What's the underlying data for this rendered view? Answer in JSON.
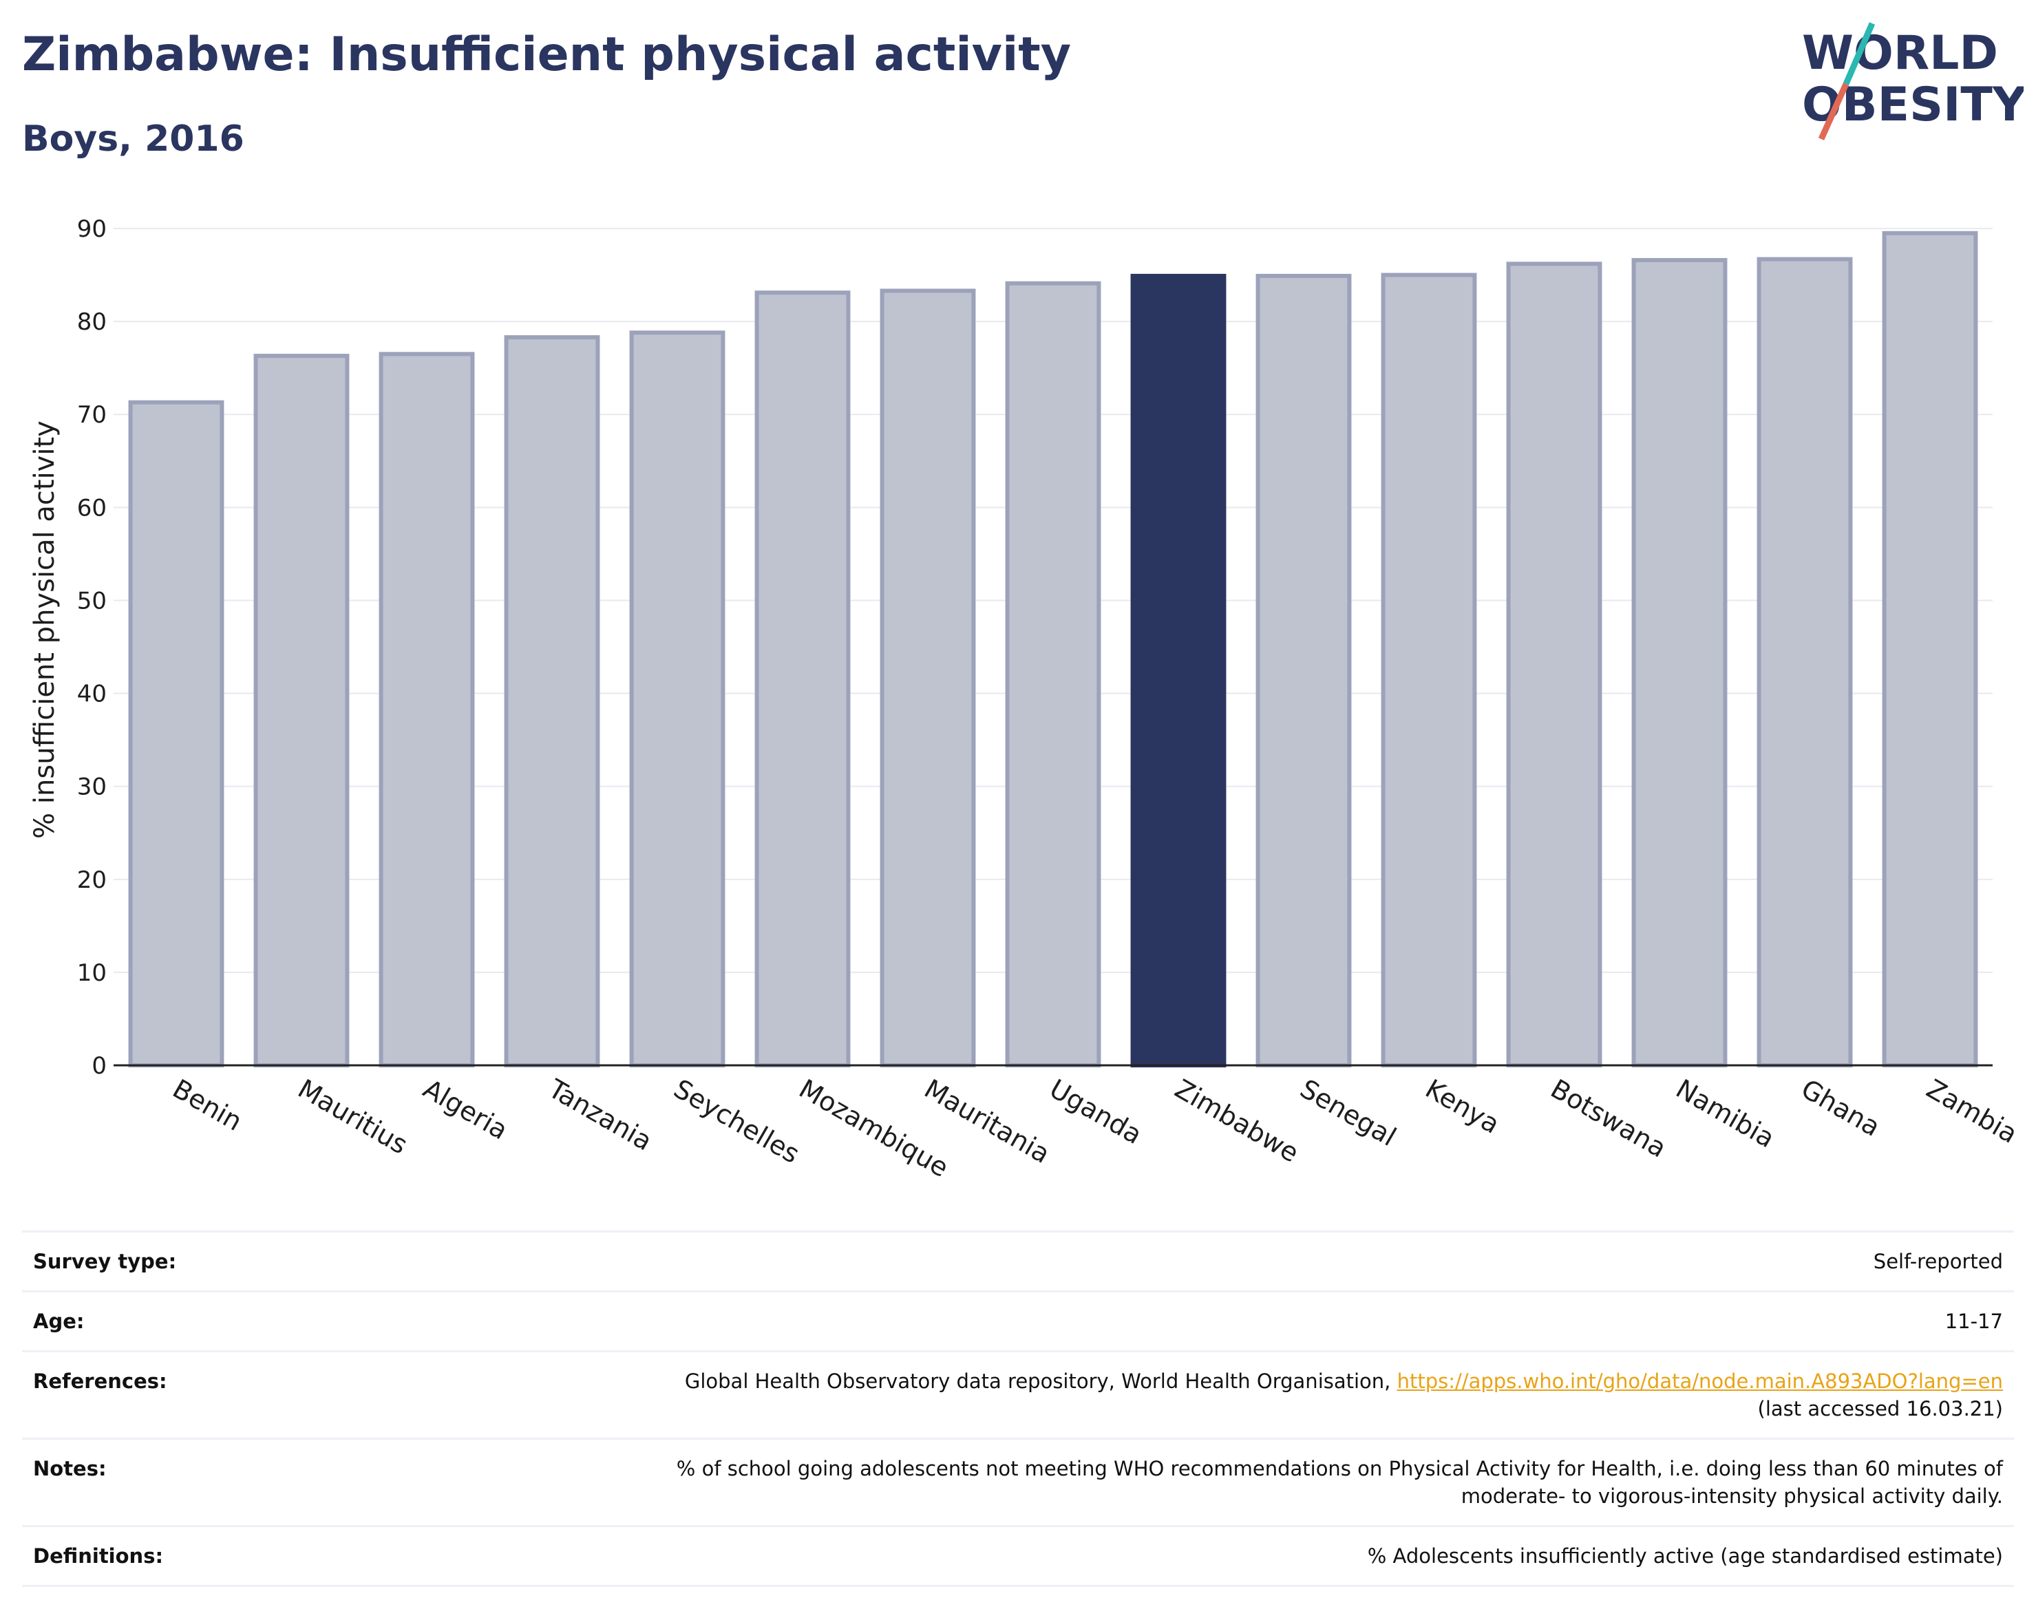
{
  "header": {
    "title": "Zimbabwe: Insufficient physical activity",
    "subtitle": "Boys, 2016"
  },
  "logo": {
    "line1": "WORLD",
    "line2": "OBESITY"
  },
  "colors": {
    "highlight": "#2a3560",
    "bar_fill": "#bfc2cf",
    "bar_stroke": "#9ca2ba",
    "grid": "#e8eaf0",
    "logo_slash_top": "#2ab8b0",
    "logo_slash_bottom": "#e06a55",
    "link": "#e8a317"
  },
  "chart_data": {
    "type": "bar",
    "title": "Zimbabwe: Insufficient physical activity",
    "subtitle": "Boys, 2016",
    "xlabel": "",
    "ylabel": "% insufficient physical activity",
    "ylim": [
      0,
      90
    ],
    "yticks": [
      0,
      10,
      20,
      30,
      40,
      50,
      60,
      70,
      80,
      90
    ],
    "grid": true,
    "categories": [
      "Benin",
      "Mauritius",
      "Algeria",
      "Tanzania",
      "Seychelles",
      "Mozambique",
      "Mauritania",
      "Uganda",
      "Zimbabwe",
      "Senegal",
      "Kenya",
      "Botswana",
      "Namibia",
      "Ghana",
      "Zambia"
    ],
    "values": [
      71.3,
      76.3,
      76.5,
      78.3,
      78.8,
      83.1,
      83.3,
      84.1,
      84.9,
      84.9,
      85.0,
      86.2,
      86.6,
      86.7,
      89.5
    ],
    "highlight": "Zimbabwe"
  },
  "info": {
    "survey_label": "Survey type:",
    "survey_value": "Self-reported",
    "age_label": "Age:",
    "age_value": "11-17",
    "references_label": "References:",
    "references_text": "Global Health Observatory data repository, World Health Organisation, ",
    "references_link": "https://apps.who.int/gho/data/node.main.A893ADO?lang=en",
    "references_accessed": "(last accessed 16.03.21)",
    "notes_label": "Notes:",
    "notes_line1": "% of school going adolescents not meeting WHO recommendations on Physical Activity for Health, i.e. doing less than 60 minutes of",
    "notes_line2": "moderate- to vigorous-intensity physical activity daily.",
    "definitions_label": "Definitions:",
    "definitions_value": "% Adolescents insufficiently active (age standardised estimate)"
  }
}
